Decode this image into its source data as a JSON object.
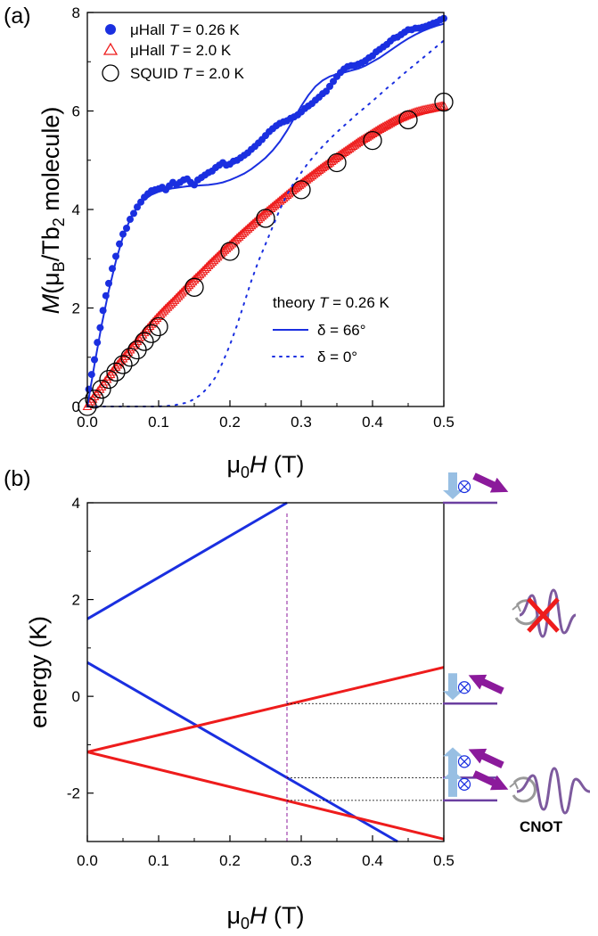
{
  "panel_labels": {
    "a": "(a)",
    "b": "(b)"
  },
  "colors": {
    "blue": "#1a2fe0",
    "red": "#ee1c1c",
    "purple": "#8b1a9b",
    "lightblue": "#98bfe3",
    "level": "#6b3fa0"
  },
  "annotations": {
    "cnot": "CNOT"
  },
  "chart_data": [
    {
      "type": "scatter",
      "xlabel": {
        "mu": "μ",
        "sub": "0",
        "H": "H",
        "unit": " (T)"
      },
      "ylabel": {
        "M": "M",
        "pre": "(μ",
        "sub1": "B",
        "mid": "/Tb",
        "sub2": "2",
        "post": " molecule)"
      },
      "xlim": [
        0,
        0.5
      ],
      "ylim": [
        0,
        8
      ],
      "xticks": [
        "0.0",
        "0.1",
        "0.2",
        "0.3",
        "0.4",
        "0.5"
      ],
      "yticks": [
        "0",
        "2",
        "4",
        "6",
        "8"
      ],
      "legend": {
        "placement": "top-left",
        "entries": [
          {
            "pre": "μHall ",
            "T": "T",
            "post": " = 0.26 K"
          },
          {
            "pre": "μHall ",
            "T": "T",
            "post": " = 2.0 K"
          },
          {
            "pre": "SQUID ",
            "T": "T",
            "post": " = 2.0 K"
          }
        ]
      },
      "legend2": {
        "title": {
          "pre": "theory ",
          "T": "T",
          "post": " = 0.26 K"
        },
        "entries": [
          {
            "text": "δ = 66°",
            "style": "solid"
          },
          {
            "text": "δ = 0°",
            "style": "dotted"
          }
        ]
      },
      "series": [
        {
          "name": "μHall T = 0.26 K",
          "marker": "filled-circle",
          "color": "#1a2fe0",
          "x": [
            0.002,
            0.006,
            0.01,
            0.014,
            0.018,
            0.022,
            0.026,
            0.03,
            0.035,
            0.04,
            0.045,
            0.05,
            0.055,
            0.06,
            0.065,
            0.07,
            0.075,
            0.08,
            0.085,
            0.09,
            0.095,
            0.1,
            0.105,
            0.11,
            0.115,
            0.12,
            0.125,
            0.13,
            0.135,
            0.14,
            0.145,
            0.15,
            0.155,
            0.16,
            0.165,
            0.17,
            0.175,
            0.18,
            0.185,
            0.19,
            0.195,
            0.2,
            0.205,
            0.21,
            0.215,
            0.22,
            0.225,
            0.23,
            0.235,
            0.24,
            0.245,
            0.25,
            0.255,
            0.26,
            0.265,
            0.27,
            0.275,
            0.28,
            0.285,
            0.29,
            0.295,
            0.3,
            0.305,
            0.31,
            0.315,
            0.32,
            0.325,
            0.33,
            0.335,
            0.34,
            0.345,
            0.35,
            0.355,
            0.36,
            0.365,
            0.37,
            0.375,
            0.38,
            0.385,
            0.39,
            0.395,
            0.4,
            0.405,
            0.41,
            0.415,
            0.42,
            0.425,
            0.43,
            0.435,
            0.44,
            0.445,
            0.45,
            0.455,
            0.46,
            0.465,
            0.47,
            0.475,
            0.48,
            0.485,
            0.49,
            0.495,
            0.5
          ],
          "y": [
            0.35,
            0.65,
            0.95,
            1.3,
            1.6,
            1.95,
            2.25,
            2.5,
            2.8,
            3.05,
            3.3,
            3.5,
            3.62,
            3.8,
            3.92,
            4.05,
            4.15,
            4.25,
            4.32,
            4.38,
            4.4,
            4.42,
            4.45,
            4.4,
            4.48,
            4.55,
            4.5,
            4.55,
            4.6,
            4.62,
            4.55,
            4.5,
            4.6,
            4.65,
            4.7,
            4.75,
            4.78,
            4.85,
            4.9,
            4.95,
            4.9,
            4.92,
            4.98,
            5.0,
            5.05,
            5.1,
            5.15,
            5.22,
            5.28,
            5.35,
            5.42,
            5.5,
            5.58,
            5.64,
            5.7,
            5.75,
            5.78,
            5.8,
            5.85,
            5.88,
            5.92,
            5.98,
            6.05,
            6.1,
            6.15,
            6.22,
            6.28,
            6.35,
            6.4,
            6.5,
            6.6,
            6.7,
            6.78,
            6.85,
            6.9,
            6.92,
            6.92,
            6.95,
            6.98,
            7.02,
            7.08,
            7.12,
            7.2,
            7.25,
            7.3,
            7.35,
            7.42,
            7.48,
            7.5,
            7.55,
            7.6,
            7.65,
            7.65,
            7.68,
            7.68,
            7.7,
            7.72,
            7.75,
            7.78,
            7.8,
            7.85,
            7.88
          ]
        },
        {
          "name": "μHall T = 2.0 K",
          "marker": "open-triangle",
          "color": "#ee1c1c",
          "x": [
            0.0,
            0.01,
            0.02,
            0.03,
            0.04,
            0.05,
            0.06,
            0.07,
            0.08,
            0.09,
            0.1,
            0.11,
            0.12,
            0.13,
            0.14,
            0.15,
            0.16,
            0.17,
            0.18,
            0.19,
            0.2,
            0.21,
            0.22,
            0.23,
            0.24,
            0.25,
            0.26,
            0.27,
            0.28,
            0.29,
            0.3,
            0.31,
            0.32,
            0.33,
            0.34,
            0.35,
            0.36,
            0.37,
            0.38,
            0.39,
            0.4,
            0.41,
            0.42,
            0.43,
            0.44,
            0.45,
            0.46,
            0.47,
            0.48,
            0.49,
            0.5
          ],
          "y": [
            0.0,
            0.2,
            0.4,
            0.6,
            0.8,
            0.97,
            1.15,
            1.32,
            1.5,
            1.67,
            1.83,
            1.98,
            2.12,
            2.27,
            2.42,
            2.57,
            2.71,
            2.86,
            3.0,
            3.14,
            3.27,
            3.41,
            3.54,
            3.67,
            3.8,
            3.93,
            4.05,
            4.17,
            4.29,
            4.41,
            4.52,
            4.63,
            4.74,
            4.85,
            4.95,
            5.06,
            5.16,
            5.26,
            5.36,
            5.45,
            5.54,
            5.63,
            5.71,
            5.79,
            5.86,
            5.92,
            5.97,
            6.01,
            6.04,
            6.07,
            6.1
          ]
        },
        {
          "name": "SQUID T = 2.0 K",
          "marker": "open-circle",
          "color": "#000000",
          "x": [
            0.0,
            0.01,
            0.02,
            0.03,
            0.04,
            0.05,
            0.06,
            0.07,
            0.08,
            0.09,
            0.1,
            0.15,
            0.2,
            0.25,
            0.3,
            0.35,
            0.4,
            0.45,
            0.5
          ],
          "y": [
            0.0,
            0.15,
            0.35,
            0.55,
            0.7,
            0.85,
            1.0,
            1.15,
            1.32,
            1.48,
            1.62,
            2.42,
            3.15,
            3.82,
            4.4,
            4.95,
            5.4,
            5.82,
            6.18
          ]
        },
        {
          "name": "δ = 66°",
          "marker": "line-solid",
          "color": "#1a2fe0",
          "x": [
            0.0,
            0.01,
            0.02,
            0.03,
            0.04,
            0.05,
            0.06,
            0.07,
            0.08,
            0.09,
            0.1,
            0.11,
            0.12,
            0.13,
            0.14,
            0.15,
            0.16,
            0.17,
            0.18,
            0.19,
            0.2,
            0.21,
            0.22,
            0.23,
            0.24,
            0.25,
            0.26,
            0.27,
            0.28,
            0.29,
            0.3,
            0.31,
            0.32,
            0.33,
            0.34,
            0.35,
            0.36,
            0.37,
            0.38,
            0.39,
            0.4,
            0.41,
            0.42,
            0.43,
            0.44,
            0.45,
            0.46,
            0.47,
            0.48,
            0.49,
            0.5
          ],
          "y": [
            0.0,
            0.85,
            1.65,
            2.35,
            2.95,
            3.45,
            3.8,
            4.05,
            4.2,
            4.3,
            4.36,
            4.4,
            4.43,
            4.45,
            4.47,
            4.48,
            4.49,
            4.5,
            4.52,
            4.55,
            4.6,
            4.66,
            4.73,
            4.82,
            4.93,
            5.05,
            5.2,
            5.38,
            5.6,
            5.85,
            6.1,
            6.32,
            6.5,
            6.62,
            6.7,
            6.75,
            6.78,
            6.82,
            6.86,
            6.92,
            7.0,
            7.08,
            7.18,
            7.28,
            7.38,
            7.47,
            7.55,
            7.62,
            7.68,
            7.73,
            7.77
          ]
        },
        {
          "name": "δ = 0°",
          "marker": "line-dotted",
          "color": "#1a2fe0",
          "x": [
            0.0,
            0.02,
            0.04,
            0.06,
            0.08,
            0.1,
            0.12,
            0.14,
            0.15,
            0.16,
            0.17,
            0.18,
            0.19,
            0.2,
            0.21,
            0.22,
            0.23,
            0.24,
            0.25,
            0.26,
            0.27,
            0.28,
            0.29,
            0.3,
            0.31,
            0.32,
            0.33,
            0.34,
            0.35,
            0.36,
            0.37,
            0.38,
            0.39,
            0.4,
            0.41,
            0.42,
            0.43,
            0.44,
            0.45,
            0.46,
            0.47,
            0.48,
            0.49,
            0.5
          ],
          "y": [
            0.0,
            0.0,
            0.0,
            0.0,
            0.0,
            0.0,
            0.02,
            0.08,
            0.15,
            0.25,
            0.4,
            0.6,
            0.9,
            1.25,
            1.65,
            2.1,
            2.55,
            2.95,
            3.3,
            3.65,
            4.0,
            4.3,
            4.55,
            4.75,
            4.95,
            5.12,
            5.28,
            5.43,
            5.57,
            5.7,
            5.83,
            5.96,
            6.08,
            6.2,
            6.33,
            6.46,
            6.58,
            6.71,
            6.83,
            6.95,
            7.07,
            7.19,
            7.31,
            7.43
          ]
        }
      ]
    },
    {
      "type": "line",
      "xlabel": {
        "mu": "μ",
        "sub": "0",
        "H": "H",
        "unit": " (T)"
      },
      "ylabel": "energy (K)",
      "xlim": [
        0,
        0.5
      ],
      "ylim": [
        -3,
        4
      ],
      "xticks": [
        "0.0",
        "0.1",
        "0.2",
        "0.3",
        "0.4",
        "0.5"
      ],
      "yticks": [
        "-2",
        "0",
        "2",
        "4"
      ],
      "marker_field": 0.28,
      "series": [
        {
          "color": "#1a2fe0",
          "x": [
            0.0,
            0.28
          ],
          "y": [
            1.6,
            4.0
          ]
        },
        {
          "color": "#1a2fe0",
          "x": [
            0.0,
            0.435
          ],
          "y": [
            0.7,
            -3.0
          ]
        },
        {
          "color": "#ee1c1c",
          "x": [
            0.0,
            0.5
          ],
          "y": [
            -1.15,
            0.6
          ]
        },
        {
          "color": "#ee1c1c",
          "x": [
            0.0,
            0.5
          ],
          "y": [
            -1.15,
            -2.95
          ]
        }
      ],
      "levels": [
        {
          "y": 4.0,
          "spin": "down",
          "arrow": "down"
        },
        {
          "y": -0.15,
          "spin": "down",
          "arrow": "up"
        },
        {
          "y": -1.68,
          "spin": "up",
          "arrow": "up"
        },
        {
          "y": -2.15,
          "spin": "up",
          "arrow": "down"
        }
      ]
    }
  ]
}
